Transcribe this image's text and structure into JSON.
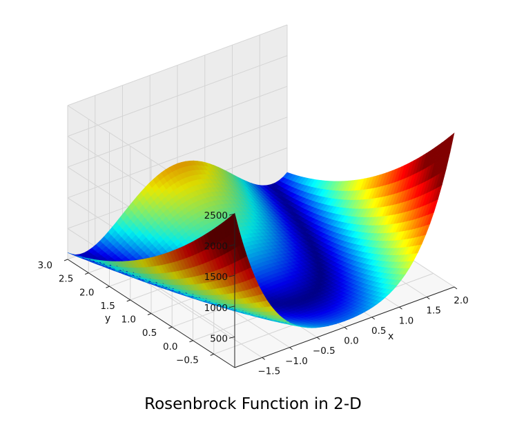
{
  "chart_data": {
    "type": "surface",
    "function": "(1 - x)^2 + 100 * (y - x^2)^2",
    "x_range": [
      -2.0,
      2.0
    ],
    "y_range": [
      -1.0,
      3.0
    ],
    "z_range": [
      0,
      2500
    ],
    "x_ticks": [
      "−1.5",
      "−1.0",
      "−0.5",
      "0.0",
      "0.5",
      "1.0",
      "1.5",
      "2.0"
    ],
    "y_ticks": [
      "−0.5",
      "0.0",
      "0.5",
      "1.0",
      "1.5",
      "2.0",
      "2.5",
      "3.0"
    ],
    "z_ticks": [
      "500",
      "1000",
      "1500",
      "2000",
      "2500"
    ],
    "xlabel": "x",
    "ylabel": "y",
    "zlabel": "",
    "colormap": "jet",
    "grid": true,
    "pane_color": "#f2f2f2"
  },
  "caption": "Rosenbrock Function in 2-D"
}
